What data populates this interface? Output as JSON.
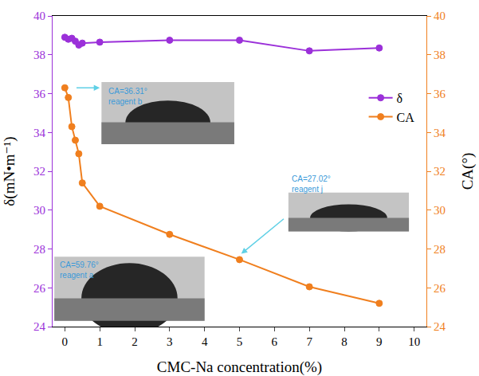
{
  "chart_data": {
    "type": "line",
    "x_label": "CMC-Na concentration(%)",
    "y_label": "δ(mN•m⁻¹)",
    "y2_label": "CA(°)",
    "x": [
      0,
      0.1,
      0.2,
      0.3,
      0.4,
      0.5,
      1,
      3,
      5,
      7,
      9
    ],
    "series": [
      {
        "name": "δ",
        "color": "#9b30d9",
        "marker": "circle",
        "axis": "y",
        "values": [
          38.9,
          38.8,
          38.85,
          38.7,
          38.5,
          38.6,
          38.65,
          38.75,
          38.75,
          38.2,
          38.35
        ]
      },
      {
        "name": "CA",
        "color": "#f07f1e",
        "marker": "circle",
        "axis": "y2",
        "values": [
          36.3,
          35.8,
          34.3,
          33.6,
          32.9,
          31.4,
          30.2,
          28.75,
          27.45,
          26.05,
          25.2
        ]
      }
    ],
    "xlim": [
      -0.35,
      10.35
    ],
    "xticks": [
      0,
      1,
      2,
      3,
      4,
      5,
      6,
      7,
      8,
      9,
      10
    ],
    "ylim": [
      24,
      40
    ],
    "yticks": [
      24,
      26,
      28,
      30,
      32,
      34,
      36,
      38,
      40
    ],
    "y2lim": [
      24,
      40
    ],
    "y2ticks": [
      24,
      26,
      28,
      30,
      32,
      34,
      36,
      38,
      40
    ],
    "legend": "upper right",
    "grid": false,
    "insets": [
      {
        "label": "CA=36.31°",
        "reagent": "reagent b"
      },
      {
        "label": "CA=27.02°",
        "reagent": "reagent j"
      },
      {
        "label": "CA=59.76°",
        "reagent": "reagent a"
      }
    ]
  }
}
